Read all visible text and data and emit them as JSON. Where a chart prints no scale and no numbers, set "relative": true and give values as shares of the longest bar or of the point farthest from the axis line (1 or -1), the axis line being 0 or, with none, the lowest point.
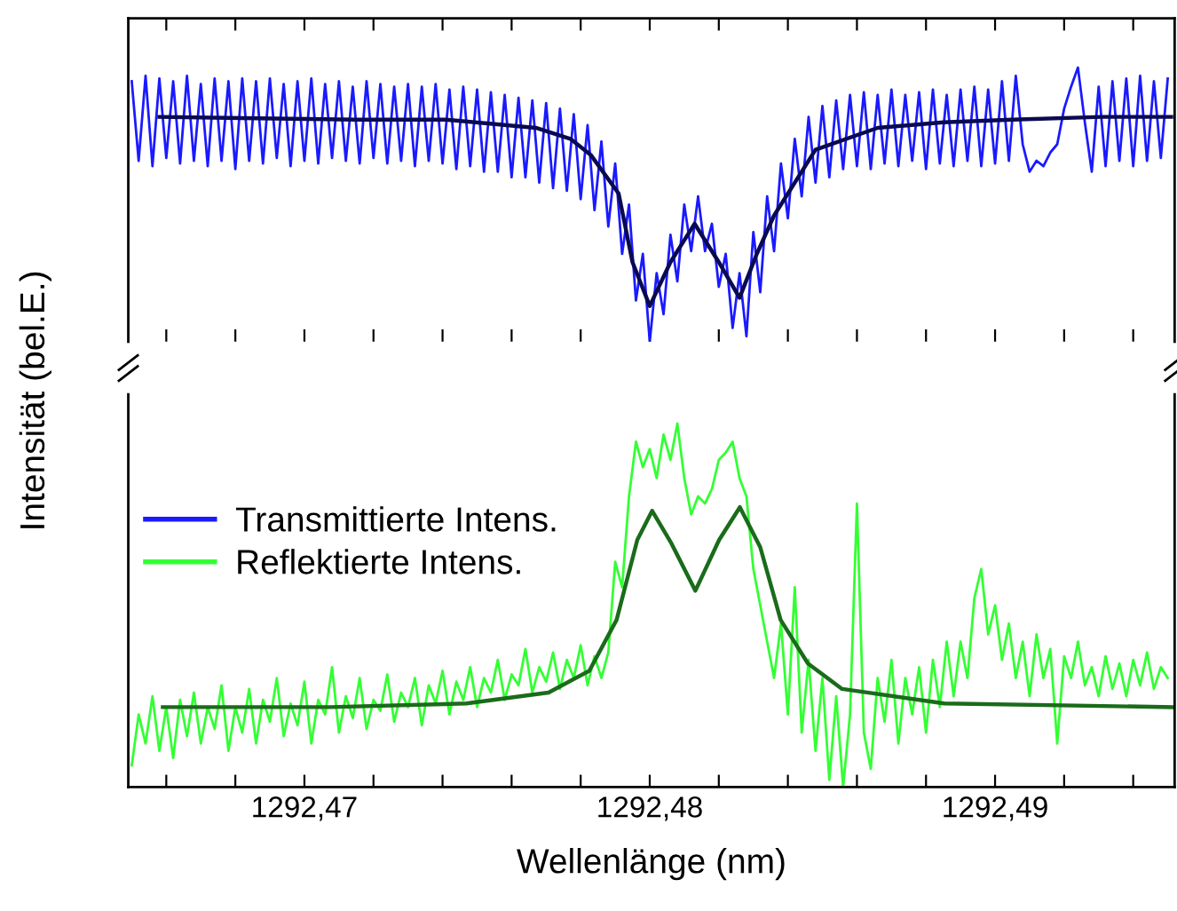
{
  "chart_data": [
    {
      "type": "line",
      "relative": true,
      "tick_labels": false,
      "xlim": [
        1292.4649,
        1292.4952
      ],
      "xticks": [
        {
          "value": 1292.466,
          "label": null
        },
        {
          "value": 1292.468,
          "label": null
        },
        {
          "value": 1292.47,
          "label": null
        },
        {
          "value": 1292.472,
          "label": null
        },
        {
          "value": 1292.474,
          "label": null
        },
        {
          "value": 1292.476,
          "label": null
        },
        {
          "value": 1292.478,
          "label": null
        },
        {
          "value": 1292.48,
          "label": null
        },
        {
          "value": 1292.482,
          "label": null
        },
        {
          "value": 1292.484,
          "label": null
        },
        {
          "value": 1292.486,
          "label": null
        },
        {
          "value": 1292.488,
          "label": null
        },
        {
          "value": 1292.49,
          "label": null
        },
        {
          "value": 1292.492,
          "label": null
        },
        {
          "value": 1292.494,
          "label": null
        }
      ],
      "series": [
        {
          "name": "Transmittierte Intens.",
          "color": "#1a1aff",
          "x": [
            1292.465,
            1292.4652,
            1292.4654,
            1292.4656,
            1292.4658,
            1292.466,
            1292.4662,
            1292.4664,
            1292.4666,
            1292.4668,
            1292.467,
            1292.4672,
            1292.4674,
            1292.4676,
            1292.4678,
            1292.468,
            1292.4682,
            1292.4684,
            1292.4686,
            1292.4688,
            1292.469,
            1292.4692,
            1292.4694,
            1292.4696,
            1292.4698,
            1292.47,
            1292.4702,
            1292.4704,
            1292.4706,
            1292.4708,
            1292.471,
            1292.4712,
            1292.4714,
            1292.4716,
            1292.4718,
            1292.472,
            1292.4722,
            1292.4724,
            1292.4726,
            1292.4728,
            1292.473,
            1292.4732,
            1292.4734,
            1292.4736,
            1292.4738,
            1292.474,
            1292.4742,
            1292.4744,
            1292.4746,
            1292.4748,
            1292.475,
            1292.4752,
            1292.4754,
            1292.4756,
            1292.4758,
            1292.476,
            1292.4762,
            1292.4764,
            1292.4766,
            1292.4768,
            1292.477,
            1292.4772,
            1292.4774,
            1292.4776,
            1292.4778,
            1292.478,
            1292.4782,
            1292.4784,
            1292.4786,
            1292.4788,
            1292.479,
            1292.4792,
            1292.4794,
            1292.4796,
            1292.4798,
            1292.48,
            1292.4802,
            1292.4804,
            1292.4806,
            1292.4808,
            1292.481,
            1292.4812,
            1292.4814,
            1292.4816,
            1292.4818,
            1292.482,
            1292.4822,
            1292.4824,
            1292.4826,
            1292.4828,
            1292.483,
            1292.4832,
            1292.4834,
            1292.4836,
            1292.4838,
            1292.484,
            1292.4842,
            1292.4844,
            1292.4846,
            1292.4848,
            1292.485,
            1292.4852,
            1292.4854,
            1292.4856,
            1292.4858,
            1292.486,
            1292.4862,
            1292.4864,
            1292.4866,
            1292.4868,
            1292.487,
            1292.4872,
            1292.4874,
            1292.4876,
            1292.4878,
            1292.488,
            1292.4882,
            1292.4884,
            1292.4886,
            1292.4888,
            1292.489,
            1292.4892,
            1292.4894,
            1292.4896,
            1292.4898,
            1292.49,
            1292.4902,
            1292.4904,
            1292.4906,
            1292.4908,
            1292.491,
            1292.4912,
            1292.4914,
            1292.4916,
            1292.4918,
            1292.492,
            1292.4922,
            1292.4924,
            1292.4926,
            1292.4928,
            1292.493,
            1292.4932,
            1292.4934,
            1292.4936,
            1292.4938,
            1292.494,
            1292.4942,
            1292.4944,
            1292.4946,
            1292.4948,
            1292.495
          ],
          "values": [
            0.95,
            0.66,
            0.97,
            0.64,
            0.96,
            0.67,
            0.95,
            0.65,
            0.97,
            0.66,
            0.94,
            0.64,
            0.96,
            0.66,
            0.95,
            0.63,
            0.96,
            0.66,
            0.95,
            0.65,
            0.96,
            0.67,
            0.94,
            0.64,
            0.95,
            0.66,
            0.96,
            0.65,
            0.94,
            0.67,
            0.95,
            0.66,
            0.93,
            0.65,
            0.95,
            0.67,
            0.94,
            0.65,
            0.93,
            0.66,
            0.94,
            0.64,
            0.93,
            0.66,
            0.94,
            0.65,
            0.92,
            0.63,
            0.93,
            0.64,
            0.92,
            0.62,
            0.91,
            0.62,
            0.9,
            0.6,
            0.89,
            0.6,
            0.88,
            0.58,
            0.87,
            0.56,
            0.85,
            0.55,
            0.83,
            0.52,
            0.79,
            0.48,
            0.73,
            0.42,
            0.65,
            0.32,
            0.5,
            0.15,
            0.32,
            0.0,
            0.25,
            0.1,
            0.39,
            0.22,
            0.5,
            0.33,
            0.53,
            0.33,
            0.43,
            0.2,
            0.32,
            0.05,
            0.25,
            0.02,
            0.4,
            0.18,
            0.53,
            0.33,
            0.65,
            0.45,
            0.74,
            0.53,
            0.82,
            0.58,
            0.86,
            0.6,
            0.88,
            0.63,
            0.9,
            0.64,
            0.91,
            0.63,
            0.9,
            0.65,
            0.92,
            0.64,
            0.9,
            0.66,
            0.91,
            0.63,
            0.92,
            0.65,
            0.9,
            0.64,
            0.92,
            0.66,
            0.93,
            0.64,
            0.92,
            0.65,
            0.95,
            0.66,
            0.97,
            0.72,
            0.62,
            0.66,
            0.64,
            0.69,
            0.72,
            0.85,
            0.93,
            1.0,
            0.8,
            0.62,
            0.93,
            0.64,
            0.95,
            0.66,
            0.96,
            0.64,
            0.97,
            0.66,
            0.95,
            0.67,
            0.96
          ]
        },
        {
          "color": "#0a0a50",
          "x": [
            1292.4658,
            1292.4715,
            1292.4741,
            1292.4767,
            1292.4777,
            1292.4783,
            1292.4791,
            1292.4795,
            1292.48,
            1292.4806,
            1292.4813,
            1292.482,
            1292.4826,
            1292.4831,
            1292.4836,
            1292.4848,
            1292.4866,
            1292.4885,
            1292.4905,
            1292.4931,
            1292.4951
          ],
          "values": [
            0.82,
            0.81,
            0.81,
            0.78,
            0.74,
            0.68,
            0.54,
            0.29,
            0.13,
            0.29,
            0.43,
            0.29,
            0.16,
            0.32,
            0.46,
            0.7,
            0.78,
            0.8,
            0.81,
            0.82,
            0.82
          ]
        }
      ]
    },
    {
      "type": "line",
      "relative": true,
      "tick_labels": "x",
      "xlabel": "Wellenlänge (nm)",
      "ylabel": "Intensität (bel.E.)",
      "legend": "left",
      "xlim": [
        1292.4649,
        1292.4952
      ],
      "xticks": [
        {
          "value": 1292.466,
          "label": null
        },
        {
          "value": 1292.468,
          "label": null
        },
        {
          "value": 1292.47,
          "label": "1292,47"
        },
        {
          "value": 1292.472,
          "label": null
        },
        {
          "value": 1292.474,
          "label": null
        },
        {
          "value": 1292.476,
          "label": null
        },
        {
          "value": 1292.478,
          "label": null
        },
        {
          "value": 1292.48,
          "label": "1292,48"
        },
        {
          "value": 1292.482,
          "label": null
        },
        {
          "value": 1292.484,
          "label": null
        },
        {
          "value": 1292.486,
          "label": null
        },
        {
          "value": 1292.488,
          "label": null
        },
        {
          "value": 1292.49,
          "label": "1292,49"
        },
        {
          "value": 1292.492,
          "label": null
        },
        {
          "value": 1292.494,
          "label": null
        }
      ],
      "series": [
        {
          "name": "Reflektierte Intens.",
          "color": "#33ff33",
          "x": [
            1292.465,
            1292.4652,
            1292.4654,
            1292.4656,
            1292.4658,
            1292.466,
            1292.4662,
            1292.4664,
            1292.4666,
            1292.4668,
            1292.467,
            1292.4672,
            1292.4674,
            1292.4676,
            1292.4678,
            1292.468,
            1292.4682,
            1292.4684,
            1292.4686,
            1292.4688,
            1292.469,
            1292.4692,
            1292.4694,
            1292.4696,
            1292.4698,
            1292.47,
            1292.4702,
            1292.4704,
            1292.4706,
            1292.4708,
            1292.471,
            1292.4712,
            1292.4714,
            1292.4716,
            1292.4718,
            1292.472,
            1292.4722,
            1292.4724,
            1292.4726,
            1292.4728,
            1292.473,
            1292.4732,
            1292.4734,
            1292.4736,
            1292.4738,
            1292.474,
            1292.4742,
            1292.4744,
            1292.4746,
            1292.4748,
            1292.475,
            1292.4752,
            1292.4754,
            1292.4756,
            1292.4758,
            1292.476,
            1292.4762,
            1292.4764,
            1292.4766,
            1292.4768,
            1292.477,
            1292.4772,
            1292.4774,
            1292.4776,
            1292.4778,
            1292.478,
            1292.4782,
            1292.4784,
            1292.4786,
            1292.4788,
            1292.479,
            1292.4792,
            1292.4794,
            1292.4796,
            1292.4798,
            1292.48,
            1292.4802,
            1292.4804,
            1292.4806,
            1292.4808,
            1292.481,
            1292.4812,
            1292.4814,
            1292.4816,
            1292.4818,
            1292.482,
            1292.4822,
            1292.4824,
            1292.4826,
            1292.4828,
            1292.483,
            1292.4832,
            1292.4834,
            1292.4836,
            1292.4838,
            1292.484,
            1292.4842,
            1292.4844,
            1292.4846,
            1292.4848,
            1292.485,
            1292.4852,
            1292.4854,
            1292.4856,
            1292.4858,
            1292.486,
            1292.4862,
            1292.4864,
            1292.4866,
            1292.4868,
            1292.487,
            1292.4872,
            1292.4874,
            1292.4876,
            1292.4878,
            1292.488,
            1292.4882,
            1292.4884,
            1292.4886,
            1292.4888,
            1292.489,
            1292.4892,
            1292.4894,
            1292.4896,
            1292.4898,
            1292.49,
            1292.4902,
            1292.4904,
            1292.4906,
            1292.4908,
            1292.491,
            1292.4912,
            1292.4914,
            1292.4916,
            1292.4918,
            1292.492,
            1292.4922,
            1292.4924,
            1292.4926,
            1292.4928,
            1292.493,
            1292.4932,
            1292.4934,
            1292.4936,
            1292.4938,
            1292.494,
            1292.4942,
            1292.4944,
            1292.4946,
            1292.4948,
            1292.495
          ],
          "values": [
            0.06,
            0.2,
            0.12,
            0.25,
            0.1,
            0.22,
            0.08,
            0.24,
            0.14,
            0.26,
            0.12,
            0.22,
            0.16,
            0.28,
            0.1,
            0.22,
            0.15,
            0.27,
            0.12,
            0.24,
            0.18,
            0.3,
            0.14,
            0.23,
            0.17,
            0.29,
            0.12,
            0.24,
            0.2,
            0.33,
            0.15,
            0.25,
            0.19,
            0.3,
            0.16,
            0.24,
            0.21,
            0.31,
            0.18,
            0.26,
            0.22,
            0.3,
            0.17,
            0.28,
            0.23,
            0.32,
            0.2,
            0.29,
            0.24,
            0.33,
            0.22,
            0.3,
            0.26,
            0.35,
            0.24,
            0.31,
            0.28,
            0.38,
            0.26,
            0.33,
            0.29,
            0.37,
            0.27,
            0.35,
            0.3,
            0.39,
            0.28,
            0.36,
            0.3,
            0.37,
            0.62,
            0.55,
            0.8,
            0.95,
            0.88,
            0.93,
            0.85,
            0.97,
            0.9,
            1.0,
            0.85,
            0.75,
            0.8,
            0.78,
            0.82,
            0.9,
            0.92,
            0.95,
            0.85,
            0.8,
            0.6,
            0.5,
            0.4,
            0.3,
            0.45,
            0.2,
            0.55,
            0.15,
            0.35,
            0.1,
            0.3,
            0.02,
            0.25,
            0.0,
            0.2,
            0.78,
            0.15,
            0.05,
            0.3,
            0.18,
            0.35,
            0.12,
            0.3,
            0.2,
            0.33,
            0.15,
            0.35,
            0.22,
            0.4,
            0.25,
            0.4,
            0.3,
            0.52,
            0.6,
            0.42,
            0.5,
            0.35,
            0.45,
            0.3,
            0.4,
            0.25,
            0.42,
            0.3,
            0.38,
            0.12,
            0.36,
            0.3,
            0.4,
            0.28,
            0.33,
            0.25,
            0.36,
            0.27,
            0.34,
            0.25,
            0.35,
            0.28,
            0.37,
            0.27,
            0.33,
            0.3
          ]
        },
        {
          "color": "#1a6b1a",
          "x": [
            1292.4659,
            1292.47074,
            1292.47469,
            1292.47707,
            1292.47825,
            1292.47904,
            1292.47964,
            1292.48007,
            1292.48063,
            1292.48132,
            1292.48201,
            1292.48261,
            1292.4832,
            1292.48379,
            1292.48458,
            1292.48557,
            1292.48853,
            1292.49514
          ],
          "values": [
            0.22,
            0.22,
            0.23,
            0.26,
            0.32,
            0.46,
            0.68,
            0.76,
            0.67,
            0.54,
            0.68,
            0.77,
            0.66,
            0.46,
            0.34,
            0.27,
            0.23,
            0.22
          ]
        }
      ]
    }
  ]
}
